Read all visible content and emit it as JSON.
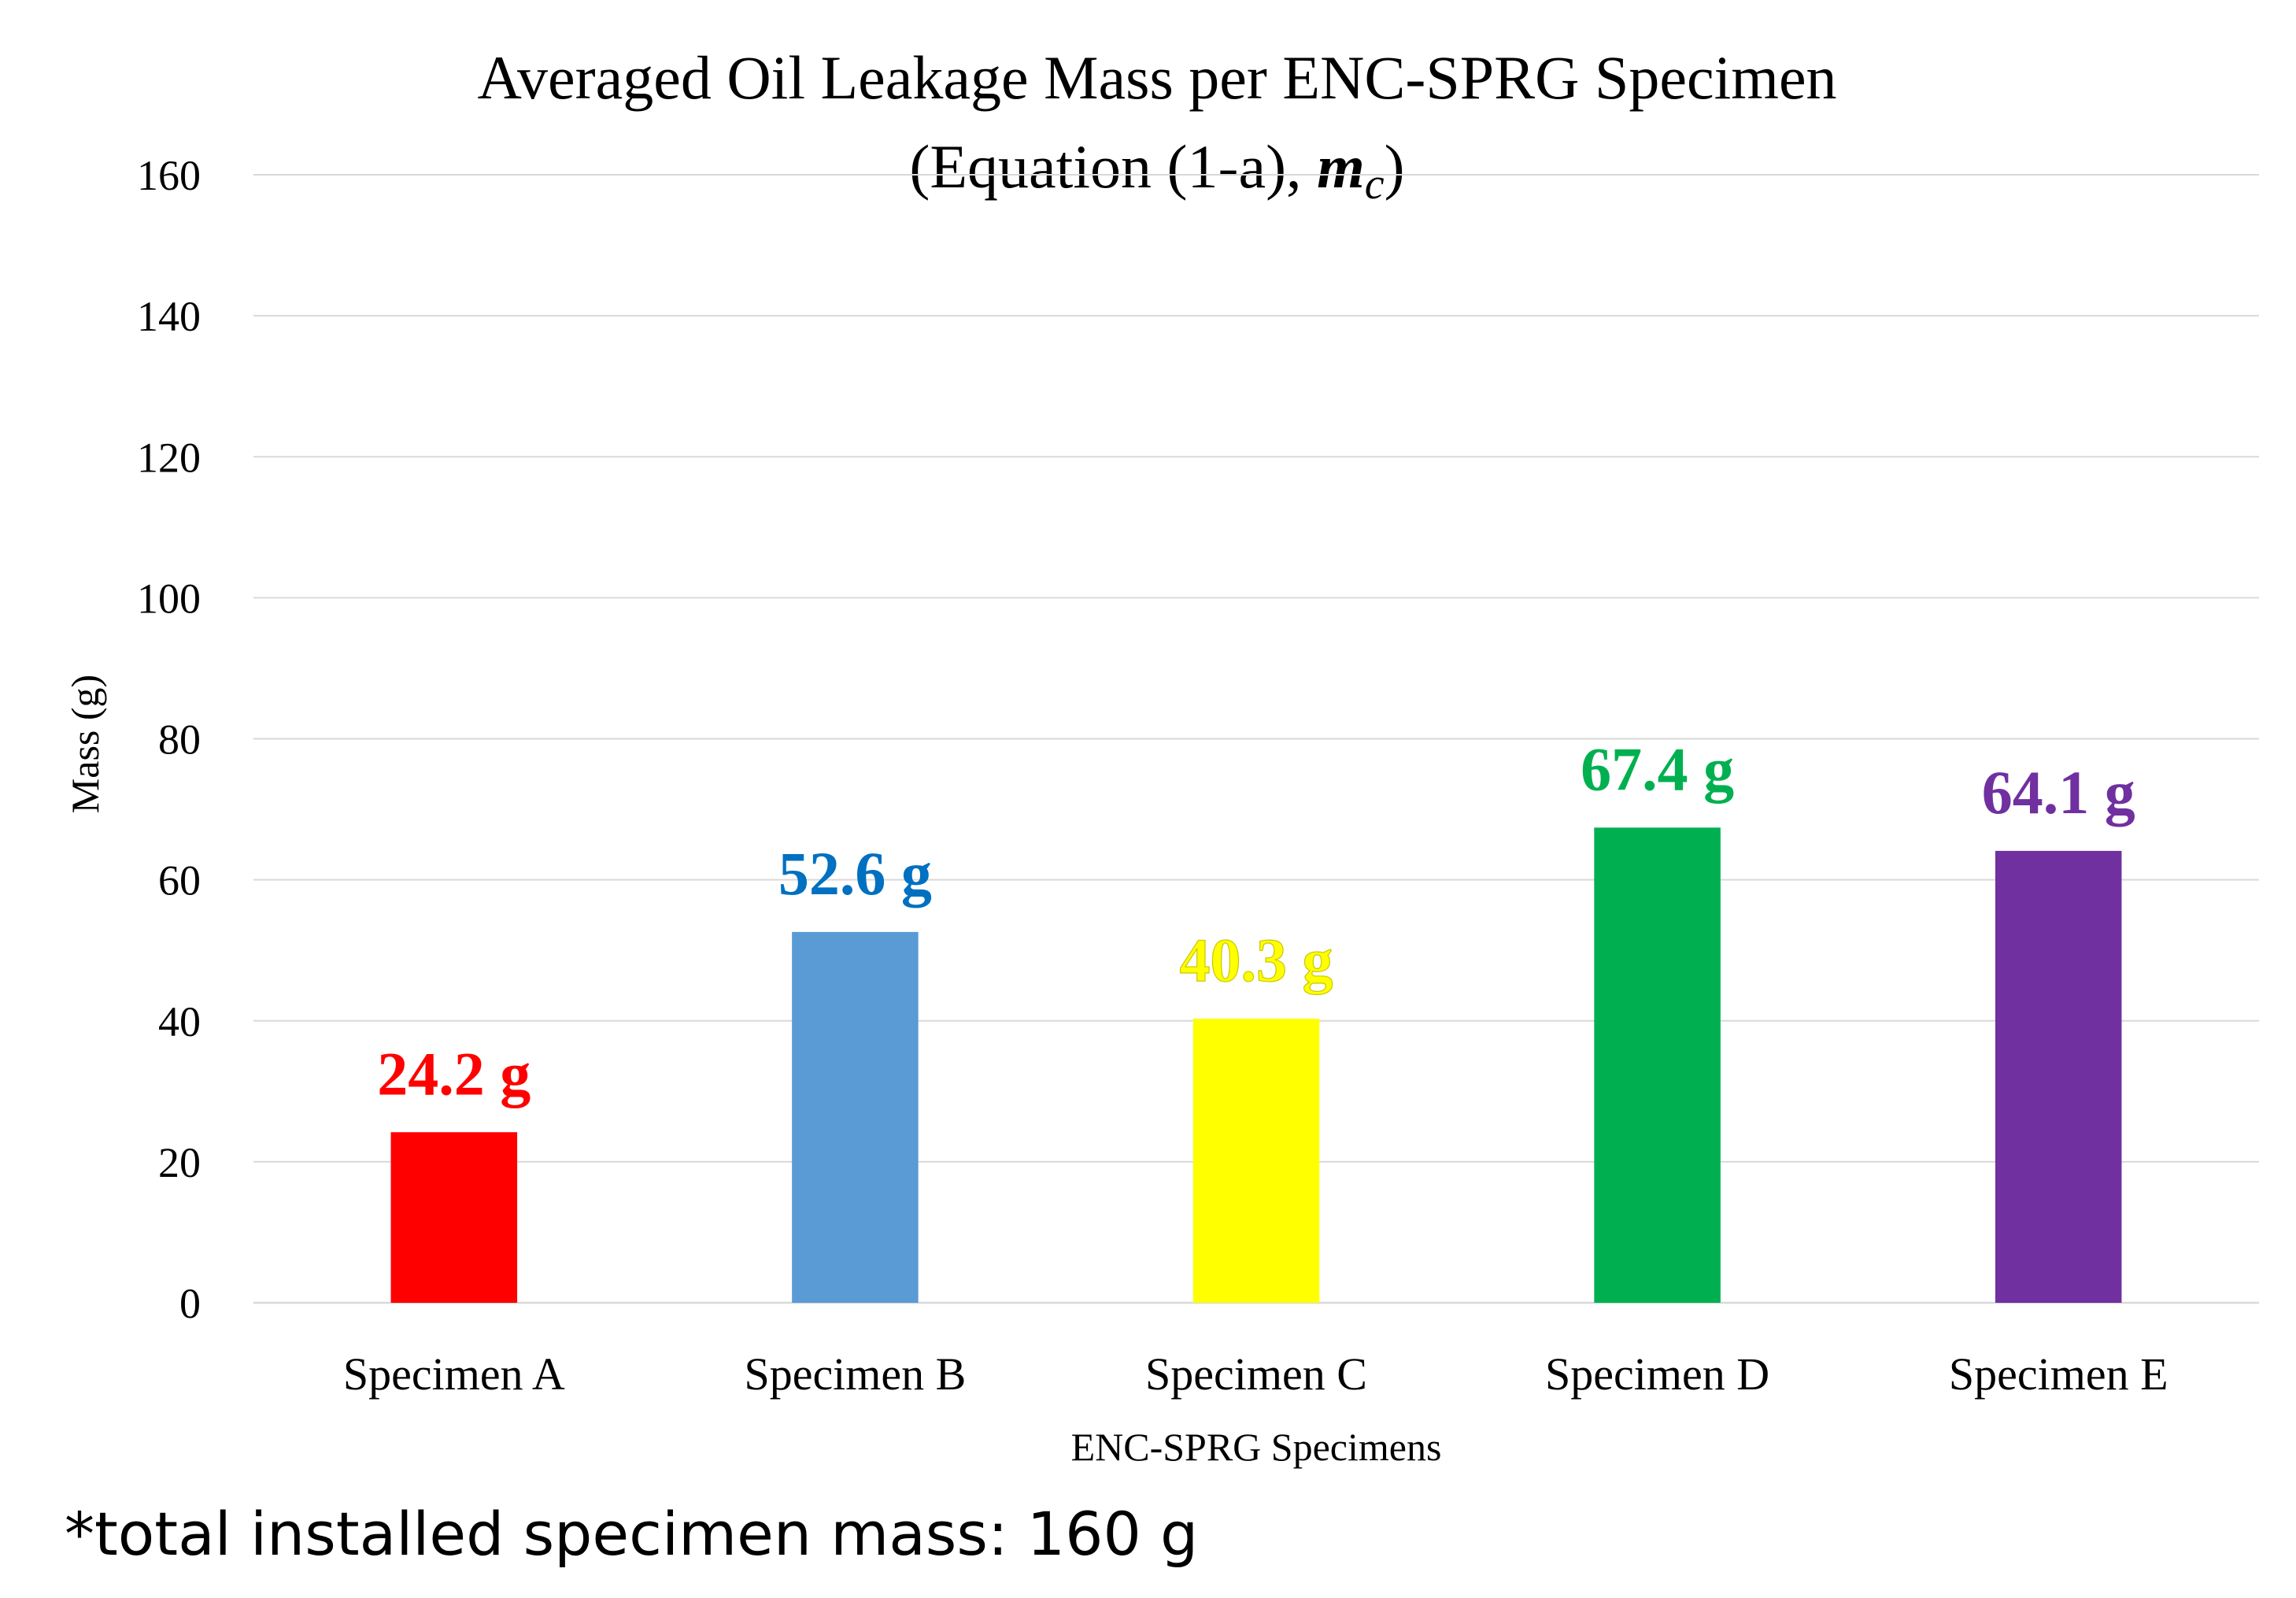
{
  "chart_data": {
    "type": "bar",
    "title": "Averaged Oil Leakage Mass per ENC-SPRG Specimen",
    "subtitle": {
      "prefix": "(Equation (1-a), ",
      "symbol": "m",
      "subscript": "c",
      "suffix": ")"
    },
    "xlabel": "ENC-SPRG Specimens",
    "ylabel": "Mass (g)",
    "categories": [
      "Specimen A",
      "Specimen B",
      "Specimen C",
      "Specimen D",
      "Specimen E"
    ],
    "values": [
      24.2,
      52.6,
      40.3,
      67.4,
      64.1
    ],
    "data_labels": [
      "24.2 g",
      "52.6 g",
      "40.3 g",
      "67.4 g",
      "64.1 g"
    ],
    "colors": [
      "#ff0000",
      "#5b9bd5",
      "#ffff00",
      "#00b050",
      "#7030a0"
    ],
    "label_colors": [
      "#ff0000",
      "#0070c0",
      "#ffff00",
      "#00b050",
      "#7030a0"
    ],
    "ylim": [
      0,
      160
    ],
    "yticks": [
      0,
      20,
      40,
      60,
      80,
      100,
      120,
      140,
      160
    ],
    "grid": true,
    "legend": "none"
  },
  "footnote": "*total installed specimen mass: 160 g"
}
